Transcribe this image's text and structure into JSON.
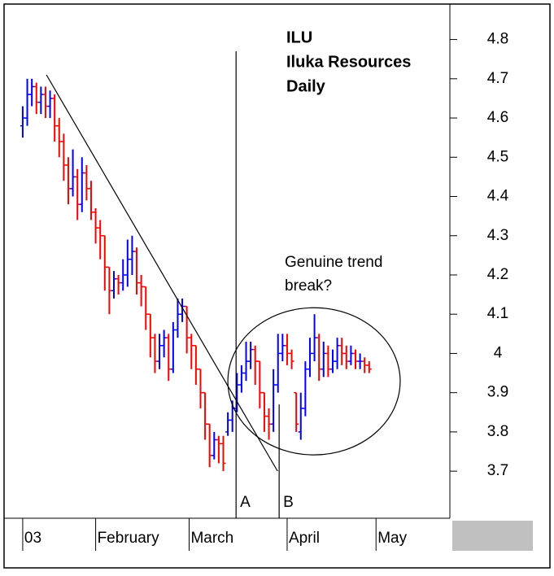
{
  "chart_data": {
    "type": "ohlc",
    "title": [
      "ILU",
      "Iluka Resources",
      "Daily"
    ],
    "annotation": [
      "Genuine trend",
      "break?"
    ],
    "up_color": "#0000ff",
    "down_color": "#ff0000",
    "open": [
      4.58,
      4.6,
      4.66,
      4.68,
      4.64,
      4.66,
      4.63,
      4.65,
      4.58,
      4.54,
      4.48,
      4.42,
      4.45,
      4.38,
      4.46,
      4.42,
      4.36,
      4.32,
      4.3,
      4.22,
      4.16,
      4.19,
      4.18,
      4.2,
      4.24,
      4.26,
      4.18,
      4.17,
      4.1,
      4.04,
      3.98,
      4.02,
      4.04,
      3.96,
      4.06,
      4.1,
      4.12,
      4.04,
      4.02,
      3.96,
      3.9,
      3.82,
      3.74,
      3.78,
      3.77,
      3.8,
      3.83,
      3.86,
      3.92,
      3.95,
      3.98,
      4.01,
      3.98,
      3.9,
      3.84,
      3.82,
      3.92,
      4.0,
      4.02,
      4.0,
      3.9,
      3.8,
      3.86,
      3.96,
      4.0,
      4.04,
      3.96,
      4.0,
      3.96,
      3.98,
      4.02,
      4.0,
      3.98,
      4.0,
      3.98,
      3.98,
      3.97
    ],
    "high": [
      4.63,
      4.7,
      4.7,
      4.69,
      4.68,
      4.68,
      4.67,
      4.66,
      4.6,
      4.56,
      4.5,
      4.52,
      4.47,
      4.5,
      4.48,
      4.44,
      4.37,
      4.34,
      4.3,
      4.22,
      4.21,
      4.2,
      4.24,
      4.29,
      4.3,
      4.27,
      4.2,
      4.17,
      4.1,
      4.05,
      4.05,
      4.06,
      4.05,
      4.08,
      4.14,
      4.14,
      4.12,
      4.05,
      4.02,
      3.96,
      3.9,
      3.82,
      3.8,
      3.79,
      3.79,
      3.85,
      3.88,
      3.95,
      3.97,
      4.03,
      4.03,
      4.02,
      3.98,
      3.9,
      3.86,
      3.96,
      4.05,
      4.05,
      4.05,
      4.01,
      3.9,
      3.9,
      3.98,
      4.04,
      4.1,
      4.05,
      4.03,
      4.02,
      4.01,
      4.04,
      4.04,
      4.02,
      4.02,
      4.01,
      4.0,
      3.99,
      3.98
    ],
    "low": [
      4.55,
      4.58,
      4.63,
      4.61,
      4.61,
      4.6,
      4.6,
      4.54,
      4.5,
      4.44,
      4.38,
      4.4,
      4.34,
      4.36,
      4.39,
      4.34,
      4.28,
      4.24,
      4.16,
      4.1,
      4.14,
      4.15,
      4.16,
      4.17,
      4.2,
      4.15,
      4.12,
      4.06,
      3.99,
      3.95,
      3.96,
      3.99,
      3.93,
      3.95,
      4.04,
      4.08,
      4.0,
      3.96,
      3.92,
      3.86,
      3.78,
      3.71,
      3.73,
      3.72,
      3.7,
      3.79,
      3.8,
      3.85,
      3.9,
      3.93,
      3.96,
      3.92,
      3.86,
      3.8,
      3.78,
      3.8,
      3.9,
      3.98,
      3.97,
      3.96,
      3.8,
      3.78,
      3.84,
      3.94,
      3.98,
      3.93,
      3.94,
      3.94,
      3.95,
      3.96,
      3.97,
      3.96,
      3.97,
      3.96,
      3.96,
      3.95,
      3.95
    ],
    "close": [
      4.6,
      4.66,
      4.68,
      4.64,
      4.66,
      4.63,
      4.65,
      4.58,
      4.54,
      4.48,
      4.42,
      4.45,
      4.38,
      4.46,
      4.42,
      4.36,
      4.32,
      4.3,
      4.22,
      4.16,
      4.19,
      4.18,
      4.2,
      4.24,
      4.26,
      4.18,
      4.17,
      4.1,
      4.04,
      3.98,
      4.02,
      4.04,
      3.96,
      4.06,
      4.1,
      4.12,
      4.04,
      4.02,
      3.96,
      3.9,
      3.82,
      3.74,
      3.78,
      3.77,
      3.72,
      3.83,
      3.86,
      3.92,
      3.95,
      3.98,
      4.01,
      3.98,
      3.9,
      3.84,
      3.82,
      3.92,
      4.0,
      4.02,
      4.0,
      3.98,
      3.82,
      3.86,
      3.96,
      4.0,
      4.04,
      3.96,
      4.0,
      3.96,
      3.98,
      4.02,
      4.0,
      3.98,
      4.0,
      3.98,
      3.98,
      3.97,
      3.96
    ],
    "xlim": [
      -3.2,
      93.7
    ],
    "xticks": [
      {
        "value": 0,
        "label": "03"
      },
      {
        "value": 16,
        "label": "February"
      },
      {
        "value": 36.5,
        "label": "March"
      },
      {
        "value": 58,
        "label": "April"
      },
      {
        "value": 77.5,
        "label": "May"
      }
    ],
    "ylim": [
      3.58,
      4.88
    ],
    "yticks": [
      3.7,
      3.8,
      3.9,
      4.0,
      4.1,
      4.2,
      4.3,
      4.4,
      4.5,
      4.6,
      4.7,
      4.8
    ],
    "markers": [
      {
        "label": "A",
        "x": 46.8,
        "y": 4.77
      },
      {
        "label": "B",
        "x": 56.25,
        "y": 3.87
      }
    ],
    "trendline": {
      "x": [
        5.2,
        55.9
      ],
      "y": [
        4.71,
        3.7
      ]
    },
    "ellipse": {
      "x": 63.9,
      "y": 3.929,
      "rx": 18.9,
      "ry": 0.1875
    }
  }
}
